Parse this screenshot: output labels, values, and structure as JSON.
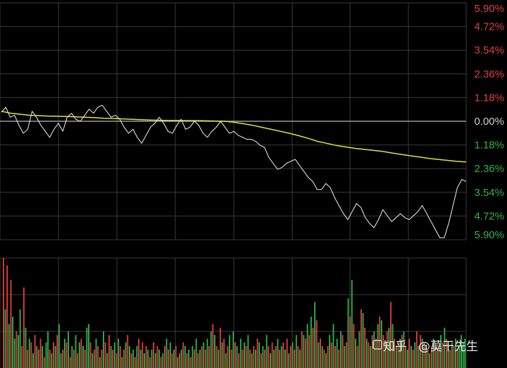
{
  "colors": {
    "background": "#000000",
    "grid": "#3a3a3a",
    "up": "#e0403c",
    "down": "#2fb34a",
    "zero": "#cfcfcf",
    "price_line": "#dcdcdc",
    "avg_line": "#e2e23a"
  },
  "watermark": {
    "icon": "zhihu-logo",
    "platform": "知乎",
    "author": "@莫干先生"
  },
  "chart_data": [
    {
      "type": "line",
      "title": "",
      "xlabel": "",
      "ylabel": "",
      "ylim": [
        -5.9,
        5.9
      ],
      "yticks": [
        {
          "label": "5.90%",
          "value": 5.9,
          "color": "up"
        },
        {
          "label": "4.72%",
          "value": 4.72,
          "color": "up"
        },
        {
          "label": "3.54%",
          "value": 3.54,
          "color": "up"
        },
        {
          "label": "2.36%",
          "value": 2.36,
          "color": "up"
        },
        {
          "label": "1.18%",
          "value": 1.18,
          "color": "up"
        },
        {
          "label": "0.00%",
          "value": 0,
          "color": "zero"
        },
        {
          "label": "1.18%",
          "value": -1.18,
          "color": "down"
        },
        {
          "label": "2.36%",
          "value": -2.36,
          "color": "down"
        },
        {
          "label": "3.54%",
          "value": -3.54,
          "color": "down"
        },
        {
          "label": "4.72%",
          "value": -4.72,
          "color": "down"
        },
        {
          "label": "5.90%",
          "value": -5.9,
          "color": "down"
        }
      ],
      "grid": true,
      "legend": "none",
      "series": [
        {
          "role": "price",
          "values": [
            0.45,
            0.7,
            0.2,
            0.3,
            -0.2,
            -0.6,
            -0.4,
            0.5,
            0.2,
            -0.2,
            -0.5,
            -0.8,
            -0.4,
            -0.1,
            -0.5,
            0.2,
            0.4,
            0.1,
            0.0,
            0.3,
            0.6,
            0.4,
            0.7,
            0.8,
            0.5,
            0.2,
            0.3,
            0.1,
            -0.3,
            -0.6,
            -0.4,
            -0.8,
            -1.1,
            -0.7,
            -0.3,
            -0.1,
            0.2,
            -0.1,
            -0.5,
            -0.6,
            -0.2,
            0.1,
            -0.4,
            -0.3,
            0.0,
            -0.2,
            -0.6,
            -0.8,
            -0.5,
            -0.3,
            0.0,
            -0.3,
            -0.6,
            -0.5,
            -0.7,
            -0.8,
            -0.9,
            -0.9,
            -1.0,
            -1.2,
            -1.3,
            -1.8,
            -2.1,
            -2.4,
            -2.3,
            -2.1,
            -2.0,
            -1.9,
            -2.2,
            -2.5,
            -2.8,
            -3.0,
            -3.4,
            -3.4,
            -3.1,
            -3.3,
            -3.8,
            -4.2,
            -4.6,
            -4.9,
            -4.5,
            -4.1,
            -4.3,
            -4.8,
            -5.1,
            -5.3,
            -4.9,
            -4.4,
            -4.7,
            -5.0,
            -4.8,
            -4.6,
            -4.8,
            -4.9,
            -4.7,
            -4.5,
            -4.2,
            -4.6,
            -5.0,
            -5.4,
            -5.8,
            -5.8,
            -5.1,
            -4.2,
            -3.3,
            -2.9,
            -3.0
          ]
        },
        {
          "role": "average",
          "values": [
            0.5,
            0.4,
            0.35,
            0.3,
            0.28,
            0.26,
            0.25,
            0.24,
            0.22,
            0.2,
            0.18,
            0.15,
            0.14,
            0.12,
            0.1,
            0.08,
            0.06,
            0.05,
            0.04,
            0.04,
            0.03,
            0.03,
            0.02,
            0.01,
            0.0,
            -0.05,
            -0.12,
            -0.2,
            -0.3,
            -0.4,
            -0.5,
            -0.6,
            -0.72,
            -0.85,
            -1.0,
            -1.1,
            -1.2,
            -1.28,
            -1.35,
            -1.4,
            -1.45,
            -1.5,
            -1.58,
            -1.65,
            -1.72,
            -1.78,
            -1.85,
            -1.9,
            -1.95,
            -2.0,
            -2.03
          ]
        }
      ]
    },
    {
      "type": "bar",
      "title": "",
      "ylim": [
        0,
        150
      ],
      "grid": true,
      "values": [
        150,
        80,
        140,
        60,
        120,
        70,
        40,
        50,
        45,
        80,
        30,
        110,
        55,
        25,
        40,
        35,
        20,
        45,
        30,
        25,
        40,
        30,
        15,
        35,
        50,
        25,
        20,
        35,
        30,
        45,
        60,
        20,
        25,
        40,
        35,
        50,
        15,
        30,
        25,
        45,
        20,
        35,
        40,
        30,
        25,
        55,
        60,
        35,
        20,
        25,
        40,
        30,
        15,
        25,
        50,
        35,
        20,
        45,
        30,
        25,
        35,
        20,
        40,
        30,
        15,
        25,
        35,
        45,
        30,
        20,
        25,
        15,
        30,
        40,
        25,
        35,
        20,
        30,
        25,
        15,
        25,
        35,
        20,
        30,
        25,
        15,
        20,
        30,
        40,
        25,
        35,
        20,
        25,
        30,
        15,
        20,
        25,
        35,
        30,
        20,
        25,
        15,
        30,
        25,
        40,
        20,
        25,
        30,
        35,
        25,
        40,
        30,
        50,
        60,
        45,
        30,
        25,
        55,
        35,
        40,
        20,
        30,
        45,
        25,
        50,
        35,
        30,
        20,
        40,
        25,
        35,
        30,
        45,
        25,
        20,
        30,
        25,
        40,
        35,
        20,
        30,
        25,
        45,
        30,
        20,
        35,
        25,
        30,
        40,
        25,
        30,
        35,
        25,
        40,
        20,
        30,
        35,
        25,
        45,
        30,
        25,
        50,
        45,
        40,
        60,
        45,
        70,
        55,
        90,
        65,
        35,
        40,
        30,
        25,
        20,
        30,
        45,
        35,
        60,
        30,
        40,
        25,
        50,
        45,
        30,
        35,
        95,
        70,
        120,
        60,
        40,
        30,
        50,
        80,
        75,
        55,
        40,
        35,
        30,
        45,
        50,
        40,
        60,
        70,
        65,
        45,
        35,
        50,
        55,
        90,
        60,
        40,
        30,
        35,
        40,
        45,
        50,
        30,
        25,
        40,
        30,
        25,
        35,
        50,
        30,
        45,
        40,
        35,
        30,
        25,
        20,
        30,
        40,
        35,
        25,
        30,
        45,
        35,
        55,
        40,
        30,
        25,
        35,
        30,
        40,
        25,
        30,
        45,
        35,
        40
      ],
      "direction": [
        1,
        0,
        1,
        0,
        1,
        0,
        0,
        1,
        0,
        0,
        1,
        1,
        0,
        1,
        0,
        1,
        0,
        1,
        0,
        1,
        1,
        0,
        1,
        0,
        0,
        1,
        0,
        1,
        0,
        1,
        0,
        0,
        1,
        0,
        1,
        0,
        1,
        0,
        1,
        0,
        1,
        0,
        1,
        0,
        1,
        0,
        0,
        1,
        0,
        1,
        0,
        1,
        0,
        1,
        0,
        1,
        0,
        1,
        0,
        1,
        0,
        1,
        0,
        1,
        0,
        1,
        0,
        1,
        0,
        1,
        0,
        1,
        0,
        1,
        0,
        1,
        0,
        1,
        0,
        1,
        0,
        1,
        0,
        1,
        0,
        1,
        0,
        1,
        0,
        1,
        0,
        1,
        0,
        1,
        0,
        1,
        0,
        1,
        0,
        1,
        0,
        1,
        0,
        1,
        0,
        1,
        0,
        1,
        0,
        1,
        0,
        1,
        0,
        1,
        0,
        1,
        0,
        1,
        0,
        1,
        0,
        1,
        0,
        1,
        0,
        1,
        0,
        1,
        0,
        1,
        0,
        1,
        0,
        1,
        0,
        1,
        0,
        1,
        0,
        1,
        0,
        1,
        0,
        1,
        0,
        1,
        0,
        1,
        0,
        1,
        0,
        1,
        0,
        1,
        0,
        1,
        0,
        1,
        0,
        1,
        0,
        1,
        0,
        1,
        0,
        1,
        0,
        1,
        0,
        1,
        0,
        1,
        0,
        1,
        0,
        1,
        0,
        1,
        0,
        1,
        0,
        1,
        0,
        1,
        0,
        1,
        0,
        1,
        0,
        1,
        0,
        1,
        0,
        1,
        0,
        1,
        0,
        1,
        0,
        1,
        0,
        1,
        0,
        1,
        0,
        1,
        0,
        1,
        0,
        1,
        0,
        1,
        0,
        1,
        0,
        1,
        0,
        1,
        0,
        1,
        0,
        1,
        0,
        1,
        0,
        1,
        0,
        1,
        0,
        1,
        0,
        1,
        0,
        1,
        0,
        1,
        0,
        1,
        0,
        1,
        0,
        1,
        0,
        1,
        0,
        1,
        0
      ]
    }
  ]
}
